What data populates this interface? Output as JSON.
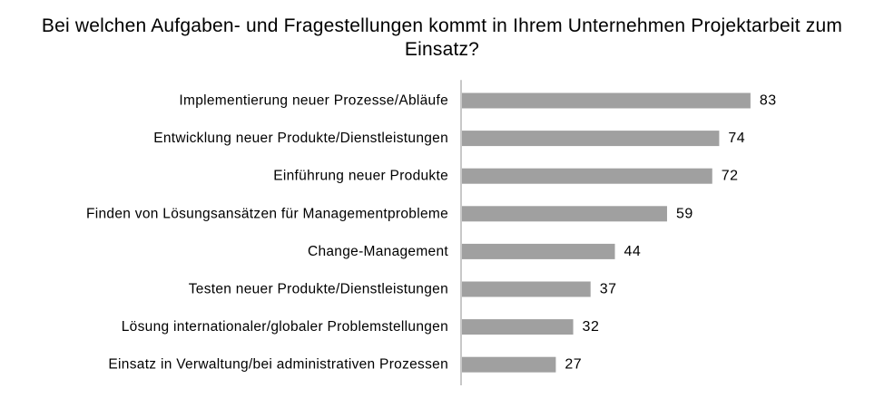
{
  "chart_data": {
    "type": "bar",
    "orientation": "horizontal",
    "title": "Bei welchen Aufgaben- und Fragestellungen kommt in Ihrem Unternehmen Projektarbeit zum Einsatz?",
    "categories": [
      "Implementierung neuer Prozesse/Abläufe",
      "Entwicklung neuer Produkte/Dienstleistungen",
      "Einführung neuer Produkte",
      "Finden von Lösungsansätzen für Managementprobleme",
      "Change-Management",
      "Testen neuer Produkte/Dienstleistungen",
      "Lösung internationaler/globaler Problemstellungen",
      "Einsatz in Verwaltung/bei administrativen Prozessen"
    ],
    "values": [
      83,
      74,
      72,
      59,
      44,
      37,
      32,
      27
    ],
    "xlim": [
      0,
      100
    ],
    "grid": false,
    "legend": "none",
    "bar_color": "#a0a0a0",
    "axis_color": "#909090"
  }
}
